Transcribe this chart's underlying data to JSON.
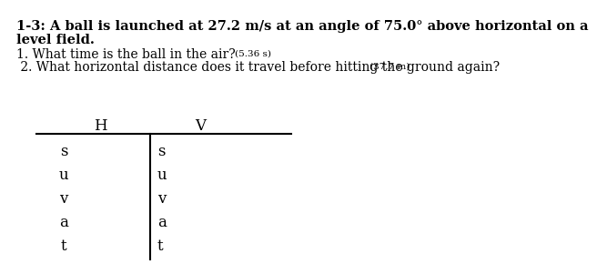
{
  "title_line1": "1-3: A ball is launched at 27.2 m/s at an angle of 75.0° above horizontal on a",
  "title_line2": "level field.",
  "q1_main": "1. What time is the ball in the air? ",
  "q1_answer": "(5.36 s)",
  "q2_main": " 2. What horizontal distance does it travel before hitting the ground again?",
  "q2_answer": "(37.7 m)",
  "col_H": "H",
  "col_V": "V",
  "rows": [
    "s",
    "u",
    "v",
    "a",
    "t"
  ],
  "bg_color": "#ffffff",
  "text_color": "#000000",
  "font_size_title": 10.5,
  "font_size_question": 10.0,
  "font_size_answer": 7.5,
  "font_size_table": 12
}
